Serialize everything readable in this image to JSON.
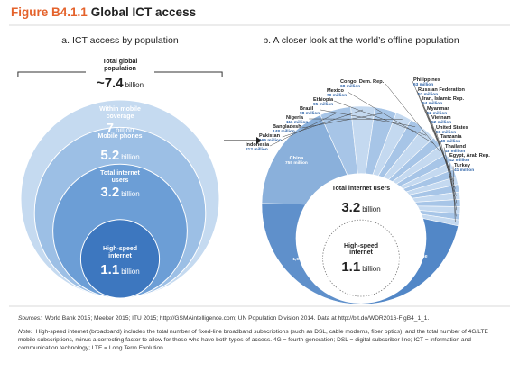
{
  "header": {
    "label": "Figure B4.1.1",
    "title": "Global ICT access"
  },
  "chart_data": [
    {
      "type": "nested-circles",
      "title": "a. ICT access by population",
      "unit": "billion",
      "categories": [
        "Total global population",
        "Within mobile coverage",
        "Mobile phones",
        "Total internet users",
        "High-speed internet"
      ],
      "values": [
        7.4,
        7,
        5.2,
        3.2,
        1.1
      ],
      "value_labels": [
        "~7.4",
        "7",
        "5.2",
        "3.2",
        "1.1"
      ],
      "colors": [
        "#333333",
        "#c5daf0",
        "#9cbfe5",
        "#6c9ed6",
        "#3d77bf"
      ]
    },
    {
      "type": "pie",
      "title": "b. A closer look at the world’s offline population",
      "categories": [
        "India",
        "China",
        "Indonesia",
        "Pakistan",
        "Bangladesh",
        "Nigeria",
        "Brazil",
        "Ethiopia",
        "Mexico",
        "Congo, Dem. Rep.",
        "Philippines",
        "Russian Federation",
        "Iran, Islamic Rep.",
        "Myanmar",
        "Vietnam",
        "United States",
        "Tanzania",
        "Thailand",
        "Egypt, Arab Rep.",
        "Turkey",
        "Countries outside of the top 20"
      ],
      "values": [
        1063,
        755,
        212,
        165,
        148,
        111,
        98,
        95,
        70,
        68,
        63,
        53,
        54,
        52,
        52,
        51,
        49,
        48,
        42,
        41,
        910
      ],
      "value_labels": [
        "1,063 million",
        "755 million",
        "212 million",
        "165 million",
        "148 million",
        "111 million",
        "98 million",
        "95 million",
        "70 million",
        "68 million",
        "63 million",
        "53 million",
        "54 million",
        "52 million",
        "52 million",
        "51 million",
        "49 million",
        "48 million",
        "42 million",
        "41 million",
        null
      ],
      "colors": [
        "#5f90cb",
        "#8ab0db",
        "#a7c5e7",
        "#c4d9f0",
        "#a7c5e7",
        "#c4d9f0",
        "#a7c5e7",
        "#c4d9f0",
        "#a7c5e7",
        "#c4d9f0",
        "#a7c5e7",
        "#c4d9f0",
        "#a7c5e7",
        "#c4d9f0",
        "#a7c5e7",
        "#c4d9f0",
        "#a7c5e7",
        "#c4d9f0",
        "#a7c5e7",
        "#c4d9f0",
        "#5287c7"
      ],
      "center_labels": {
        "categories": [
          "Total internet users",
          "High-speed internet"
        ],
        "values": [
          3.2,
          1.1
        ],
        "unit": "billion"
      }
    }
  ],
  "notes": {
    "sources_label": "Sources:",
    "sources": "World Bank 2015; Meeker 2015; ITU 2015; http://GSMAintelligence.com; UN Population Division 2014. Data at http://bit.do/WDR2016-FigB4_1_1.",
    "note_label": "Note:",
    "note": "High-speed internet (broadband) includes the total number of fixed-line broadband subscriptions (such as DSL, cable modems, fiber optics), and the total number of 4G/LTE mobile subscriptions, minus a correcting factor to allow for those who have both types of access. 4G = fourth-generation; DSL = digital subscriber line; ICT = information and communication technology; LTE = Long Term Evolution."
  }
}
